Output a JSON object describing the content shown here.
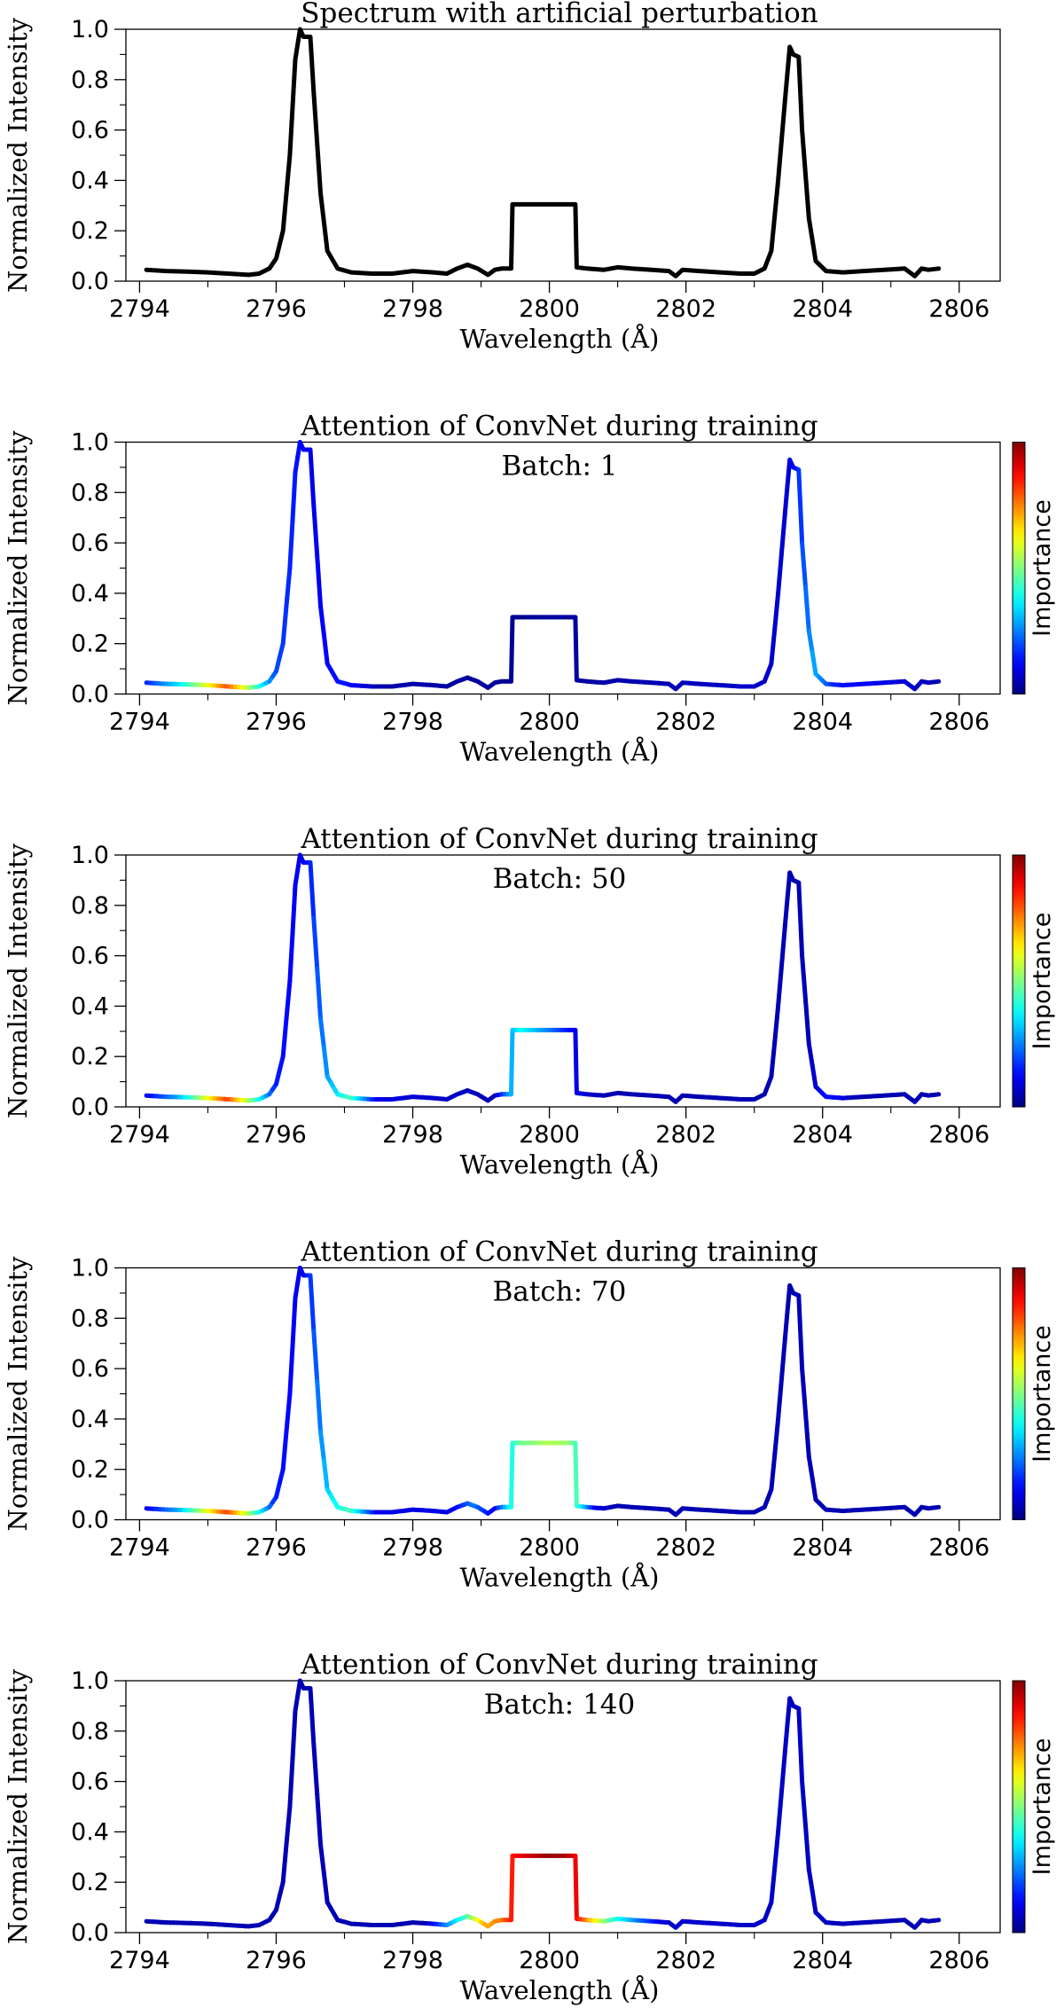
{
  "chart_data": [
    {
      "type": "line",
      "title": "Spectrum with artificial perturbation",
      "subtitle": "",
      "xlabel": "Wavelength (Å)",
      "ylabel": "Normalized Intensity",
      "colorbar_label": "",
      "xlim": [
        2793.8,
        2806.6
      ],
      "ylim": [
        0.0,
        1.0
      ],
      "xticks": [
        "2794",
        "2796",
        "2798",
        "2800",
        "2802",
        "2804",
        "2806"
      ],
      "yticks": [
        "0.0",
        "0.2",
        "0.4",
        "0.6",
        "0.8",
        "1.0"
      ],
      "line_color": "#000000",
      "importance": []
    },
    {
      "type": "line",
      "title": "Attention of ConvNet during training",
      "subtitle": "Batch: 1",
      "xlabel": "Wavelength (Å)",
      "ylabel": "Normalized Intensity",
      "colorbar_label": "Importance",
      "xlim": [
        2793.8,
        2806.6
      ],
      "ylim": [
        0.0,
        1.0
      ],
      "xticks": [
        "2794",
        "2796",
        "2798",
        "2800",
        "2802",
        "2804",
        "2806"
      ],
      "yticks": [
        "0.0",
        "0.2",
        "0.4",
        "0.6",
        "0.8",
        "1.0"
      ],
      "line_color": "colormap",
      "importance": [
        {
          "x": 2794.1,
          "v": 0.15
        },
        {
          "x": 2794.6,
          "v": 0.35
        },
        {
          "x": 2795.0,
          "v": 0.6
        },
        {
          "x": 2795.3,
          "v": 0.8
        },
        {
          "x": 2795.6,
          "v": 0.55
        },
        {
          "x": 2796.0,
          "v": 0.2
        },
        {
          "x": 2796.5,
          "v": 0.1
        },
        {
          "x": 2797.0,
          "v": 0.15
        },
        {
          "x": 2797.5,
          "v": 0.05
        },
        {
          "x": 2799.5,
          "v": 0.02
        },
        {
          "x": 2803.5,
          "v": 0.08
        },
        {
          "x": 2803.9,
          "v": 0.3
        },
        {
          "x": 2804.2,
          "v": 0.15
        },
        {
          "x": 2805.7,
          "v": 0.05
        }
      ]
    },
    {
      "type": "line",
      "title": "Attention of ConvNet during training",
      "subtitle": "Batch: 50",
      "xlabel": "Wavelength (Å)",
      "ylabel": "Normalized Intensity",
      "colorbar_label": "Importance",
      "xlim": [
        2793.8,
        2806.6
      ],
      "ylim": [
        0.0,
        1.0
      ],
      "xticks": [
        "2794",
        "2796",
        "2798",
        "2800",
        "2802",
        "2804",
        "2806"
      ],
      "yticks": [
        "0.0",
        "0.2",
        "0.4",
        "0.6",
        "0.8",
        "1.0"
      ],
      "line_color": "colormap",
      "importance": [
        {
          "x": 2794.1,
          "v": 0.1
        },
        {
          "x": 2794.6,
          "v": 0.3
        },
        {
          "x": 2795.0,
          "v": 0.6
        },
        {
          "x": 2795.3,
          "v": 0.82
        },
        {
          "x": 2795.6,
          "v": 0.55
        },
        {
          "x": 2796.0,
          "v": 0.15
        },
        {
          "x": 2796.4,
          "v": 0.1
        },
        {
          "x": 2796.8,
          "v": 0.3
        },
        {
          "x": 2797.1,
          "v": 0.45
        },
        {
          "x": 2797.5,
          "v": 0.1
        },
        {
          "x": 2799.2,
          "v": 0.05
        },
        {
          "x": 2799.45,
          "v": 0.3
        },
        {
          "x": 2799.6,
          "v": 0.38
        },
        {
          "x": 2800.0,
          "v": 0.25
        },
        {
          "x": 2800.4,
          "v": 0.1
        },
        {
          "x": 2800.8,
          "v": 0.05
        },
        {
          "x": 2803.8,
          "v": 0.05
        },
        {
          "x": 2804.1,
          "v": 0.15
        },
        {
          "x": 2804.5,
          "v": 0.05
        },
        {
          "x": 2805.7,
          "v": 0.05
        }
      ]
    },
    {
      "type": "line",
      "title": "Attention of ConvNet during training",
      "subtitle": "Batch: 70",
      "xlabel": "Wavelength (Å)",
      "ylabel": "Normalized Intensity",
      "colorbar_label": "Importance",
      "xlim": [
        2793.8,
        2806.6
      ],
      "ylim": [
        0.0,
        1.0
      ],
      "xticks": [
        "2794",
        "2796",
        "2798",
        "2800",
        "2802",
        "2804",
        "2806"
      ],
      "yticks": [
        "0.0",
        "0.2",
        "0.4",
        "0.6",
        "0.8",
        "1.0"
      ],
      "line_color": "colormap",
      "importance": [
        {
          "x": 2794.1,
          "v": 0.1
        },
        {
          "x": 2794.6,
          "v": 0.3
        },
        {
          "x": 2795.0,
          "v": 0.6
        },
        {
          "x": 2795.3,
          "v": 0.82
        },
        {
          "x": 2795.6,
          "v": 0.55
        },
        {
          "x": 2796.0,
          "v": 0.15
        },
        {
          "x": 2796.4,
          "v": 0.1
        },
        {
          "x": 2796.8,
          "v": 0.35
        },
        {
          "x": 2797.1,
          "v": 0.45
        },
        {
          "x": 2797.5,
          "v": 0.1
        },
        {
          "x": 2798.6,
          "v": 0.1
        },
        {
          "x": 2798.9,
          "v": 0.25
        },
        {
          "x": 2799.2,
          "v": 0.1
        },
        {
          "x": 2799.45,
          "v": 0.4
        },
        {
          "x": 2799.6,
          "v": 0.48
        },
        {
          "x": 2800.0,
          "v": 0.55
        },
        {
          "x": 2800.3,
          "v": 0.52
        },
        {
          "x": 2800.45,
          "v": 0.4
        },
        {
          "x": 2800.7,
          "v": 0.1
        },
        {
          "x": 2801.0,
          "v": 0.05
        },
        {
          "x": 2805.7,
          "v": 0.05
        }
      ]
    },
    {
      "type": "line",
      "title": "Attention of ConvNet during training",
      "subtitle": "Batch: 140",
      "xlabel": "Wavelength (Å)",
      "ylabel": "Normalized Intensity",
      "colorbar_label": "Importance",
      "xlim": [
        2793.8,
        2806.6
      ],
      "ylim": [
        0.0,
        1.0
      ],
      "xticks": [
        "2794",
        "2796",
        "2798",
        "2800",
        "2802",
        "2804",
        "2806"
      ],
      "yticks": [
        "0.0",
        "0.2",
        "0.4",
        "0.6",
        "0.8",
        "1.0"
      ],
      "line_color": "colormap",
      "importance": [
        {
          "x": 2794.1,
          "v": 0.05
        },
        {
          "x": 2798.2,
          "v": 0.05
        },
        {
          "x": 2798.5,
          "v": 0.25
        },
        {
          "x": 2798.8,
          "v": 0.45
        },
        {
          "x": 2799.05,
          "v": 0.7
        },
        {
          "x": 2799.3,
          "v": 0.75
        },
        {
          "x": 2799.45,
          "v": 0.85
        },
        {
          "x": 2799.6,
          "v": 0.9
        },
        {
          "x": 2800.0,
          "v": 0.98
        },
        {
          "x": 2800.3,
          "v": 0.95
        },
        {
          "x": 2800.45,
          "v": 0.85
        },
        {
          "x": 2800.6,
          "v": 0.7
        },
        {
          "x": 2800.9,
          "v": 0.45
        },
        {
          "x": 2801.3,
          "v": 0.25
        },
        {
          "x": 2801.7,
          "v": 0.08
        },
        {
          "x": 2805.7,
          "v": 0.05
        }
      ]
    }
  ],
  "spectrum": {
    "x": [
      2794.1,
      2794.4,
      2794.7,
      2795.0,
      2795.3,
      2795.6,
      2795.75,
      2795.9,
      2796.0,
      2796.1,
      2796.2,
      2796.28,
      2796.35,
      2796.4,
      2796.5,
      2796.55,
      2796.65,
      2796.75,
      2796.9,
      2797.1,
      2797.4,
      2797.7,
      2798.0,
      2798.3,
      2798.5,
      2798.65,
      2798.8,
      2798.95,
      2799.1,
      2799.2,
      2799.3,
      2799.44,
      2799.46,
      2799.6,
      2800.0,
      2800.38,
      2800.4,
      2800.55,
      2800.8,
      2801.0,
      2801.2,
      2801.5,
      2801.75,
      2801.85,
      2801.95,
      2802.2,
      2802.5,
      2802.8,
      2803.0,
      2803.15,
      2803.25,
      2803.35,
      2803.45,
      2803.52,
      2803.57,
      2803.65,
      2803.7,
      2803.8,
      2803.9,
      2804.05,
      2804.3,
      2804.6,
      2804.9,
      2805.2,
      2805.35,
      2805.45,
      2805.55,
      2805.7
    ],
    "y": [
      0.045,
      0.04,
      0.038,
      0.035,
      0.03,
      0.025,
      0.03,
      0.05,
      0.09,
      0.2,
      0.5,
      0.88,
      1.0,
      0.97,
      0.97,
      0.75,
      0.35,
      0.12,
      0.05,
      0.035,
      0.03,
      0.03,
      0.04,
      0.035,
      0.03,
      0.05,
      0.065,
      0.05,
      0.025,
      0.045,
      0.05,
      0.05,
      0.305,
      0.305,
      0.305,
      0.305,
      0.055,
      0.05,
      0.045,
      0.055,
      0.05,
      0.045,
      0.04,
      0.02,
      0.045,
      0.04,
      0.035,
      0.03,
      0.03,
      0.05,
      0.12,
      0.4,
      0.72,
      0.93,
      0.9,
      0.89,
      0.6,
      0.25,
      0.08,
      0.04,
      0.035,
      0.04,
      0.045,
      0.05,
      0.02,
      0.05,
      0.045,
      0.05
    ]
  }
}
